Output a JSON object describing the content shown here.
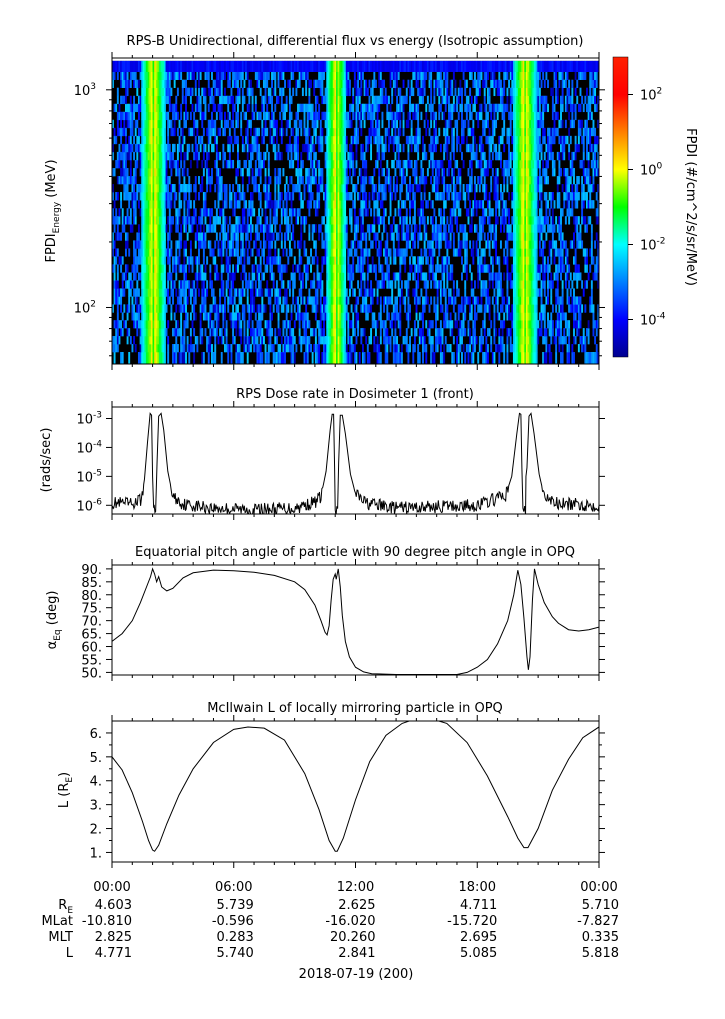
{
  "figure": {
    "date_label": "2018-07-19 (200)",
    "time_ticks": [
      "00:00",
      "06:00",
      "12:00",
      "18:00",
      "00:00"
    ],
    "ephemeris": [
      {
        "label": "R",
        "sub": "E",
        "values": [
          "4.603",
          "5.739",
          "2.625",
          "4.711",
          "5.710"
        ]
      },
      {
        "label": "MLat",
        "sub": "",
        "values": [
          "-10.810",
          "-0.596",
          "-16.020",
          "-15.720",
          "-7.827"
        ]
      },
      {
        "label": "MLT",
        "sub": "",
        "values": [
          "2.825",
          "0.283",
          "20.260",
          "2.695",
          "0.335"
        ]
      },
      {
        "label": "L",
        "sub": "",
        "values": [
          "4.771",
          "5.740",
          "2.841",
          "5.085",
          "5.818"
        ]
      }
    ]
  },
  "chart_data": [
    {
      "type": "heatmap",
      "title": "RPS-B  Unidirectional, differential flux vs energy (Isotropic assumption)",
      "ylabel": {
        "main": "FPDI",
        "sub": "Energy",
        "unit": " (MeV)"
      },
      "yscale": "log",
      "ylim": [
        55,
        1400
      ],
      "y_ticks": [
        {
          "value": 100,
          "base": "10",
          "exp": "2"
        },
        {
          "value": 1000,
          "base": "10",
          "exp": "3"
        }
      ],
      "energy_channels_mev": [
        60,
        65,
        71,
        77,
        84,
        91,
        99,
        108,
        117,
        128,
        139,
        151,
        165,
        179,
        195,
        212,
        231,
        252,
        274,
        298,
        325,
        354,
        385,
        419,
        456,
        497,
        541,
        589,
        641,
        698,
        760,
        827,
        900,
        980,
        1067,
        1161,
        1264
      ],
      "x_hours": [
        0,
        24
      ],
      "flux_peaks_hours": [
        2.05,
        11.05,
        20.35
      ],
      "flux_peak_halfwidth_hours": [
        0.62,
        0.5,
        0.6
      ],
      "colorbar": {
        "label": "FPDI (#/cm^2/s/sr/MeV)",
        "scale": "log",
        "range_exp": [
          -5,
          3
        ],
        "ticks": [
          {
            "base": "10",
            "exp": "2",
            "value_exp": 2
          },
          {
            "base": "10",
            "exp": "0",
            "value_exp": 0
          },
          {
            "base": "10",
            "exp": "-2",
            "value_exp": -2
          },
          {
            "base": "10",
            "exp": "-4",
            "value_exp": -4
          }
        ]
      }
    },
    {
      "type": "line",
      "title": "RPS  Dose rate in Dosimeter 1 (front)",
      "ylabel": "(rads/sec)",
      "yscale": "log",
      "ylim": [
        5e-07,
        0.0025
      ],
      "y_ticks": [
        {
          "value": 1e-06,
          "base": "10",
          "exp": "-6"
        },
        {
          "value": 1e-05,
          "base": "10",
          "exp": "-5"
        },
        {
          "value": 0.0001,
          "base": "10",
          "exp": "-4"
        },
        {
          "value": 0.001,
          "base": "10",
          "exp": "-3"
        }
      ],
      "x_hours": [
        0,
        24
      ],
      "series": [
        {
          "points": [
            [
              0.0,
              1.2e-06
            ],
            [
              1.0,
              1.1e-06
            ],
            [
              1.45,
              1.6e-06
            ],
            [
              1.6,
              8e-06
            ],
            [
              1.75,
              0.00015
            ],
            [
              1.88,
              0.0015
            ],
            [
              1.95,
              0.0013
            ],
            [
              2.0,
              1e-05
            ],
            [
              2.05,
              6e-07
            ],
            [
              2.15,
              6e-07
            ],
            [
              2.22,
              3e-05
            ],
            [
              2.3,
              0.0012
            ],
            [
              2.42,
              0.0015
            ],
            [
              2.55,
              0.0004
            ],
            [
              2.75,
              1.5e-05
            ],
            [
              3.0,
              2e-06
            ],
            [
              3.5,
              1.1e-06
            ],
            [
              5.0,
              8e-07
            ],
            [
              7.0,
              7e-07
            ],
            [
              9.0,
              8e-07
            ],
            [
              10.0,
              1.3e-06
            ],
            [
              10.3,
              2e-06
            ],
            [
              10.55,
              1.5e-05
            ],
            [
              10.75,
              0.0004
            ],
            [
              10.85,
              0.0014
            ],
            [
              10.92,
              0.0014
            ],
            [
              10.97,
              2e-05
            ],
            [
              11.0,
              6e-07
            ],
            [
              11.12,
              6e-07
            ],
            [
              11.17,
              3e-05
            ],
            [
              11.25,
              0.0013
            ],
            [
              11.35,
              0.0013
            ],
            [
              11.5,
              0.0003
            ],
            [
              11.75,
              1.2e-05
            ],
            [
              12.0,
              2.5e-06
            ],
            [
              12.5,
              1.2e-06
            ],
            [
              14.0,
              8e-07
            ],
            [
              16.0,
              9e-07
            ],
            [
              18.0,
              1e-06
            ],
            [
              19.4,
              2.2e-06
            ],
            [
              19.7,
              1e-05
            ],
            [
              19.95,
              0.0003
            ],
            [
              20.08,
              0.0015
            ],
            [
              20.15,
              0.0014
            ],
            [
              20.2,
              2e-05
            ],
            [
              20.25,
              6e-07
            ],
            [
              20.38,
              6e-07
            ],
            [
              20.4,
              1e-05
            ],
            [
              20.45,
              2e-05
            ],
            [
              20.55,
              0.0012
            ],
            [
              20.65,
              0.0015
            ],
            [
              20.8,
              0.0003
            ],
            [
              21.05,
              1.2e-05
            ],
            [
              21.3,
              2e-06
            ],
            [
              22.0,
              1.1e-06
            ],
            [
              24.0,
              1e-06
            ]
          ]
        }
      ]
    },
    {
      "type": "line",
      "title": "Equatorial pitch angle of particle with 90 degree pitch angle in OPQ",
      "ylabel": {
        "main": "α",
        "sub": "Eq",
        "unit": " (deg)"
      },
      "ylim": [
        49,
        91.5
      ],
      "y_ticks": [
        50,
        55,
        60,
        65,
        70,
        75,
        80,
        85,
        90
      ],
      "x_hours": [
        0,
        24
      ],
      "series": [
        {
          "points": [
            [
              0.0,
              62
            ],
            [
              0.5,
              65
            ],
            [
              1.0,
              70
            ],
            [
              1.4,
              77
            ],
            [
              1.7,
              83
            ],
            [
              1.9,
              87
            ],
            [
              2.0,
              90
            ],
            [
              2.1,
              88
            ],
            [
              2.2,
              85
            ],
            [
              2.3,
              87
            ],
            [
              2.45,
              83
            ],
            [
              2.7,
              81.5
            ],
            [
              3.0,
              82.5
            ],
            [
              3.5,
              86.5
            ],
            [
              4.0,
              88.5
            ],
            [
              5.0,
              89.5
            ],
            [
              6.0,
              89.3
            ],
            [
              7.0,
              88.7
            ],
            [
              8.0,
              87.5
            ],
            [
              9.0,
              85
            ],
            [
              9.5,
              82
            ],
            [
              10.0,
              76
            ],
            [
              10.3,
              70
            ],
            [
              10.5,
              65.5
            ],
            [
              10.6,
              64.5
            ],
            [
              10.7,
              68
            ],
            [
              10.8,
              78
            ],
            [
              10.9,
              86
            ],
            [
              11.0,
              88
            ],
            [
              11.05,
              86
            ],
            [
              11.15,
              90
            ],
            [
              11.25,
              83
            ],
            [
              11.35,
              72
            ],
            [
              11.5,
              62
            ],
            [
              11.7,
              56
            ],
            [
              12.0,
              52
            ],
            [
              12.4,
              50.2
            ],
            [
              12.8,
              49.5
            ],
            [
              14.0,
              49.2
            ],
            [
              17.0,
              49.2
            ],
            [
              17.5,
              50
            ],
            [
              18.0,
              52
            ],
            [
              18.5,
              55
            ],
            [
              19.0,
              61
            ],
            [
              19.5,
              70
            ],
            [
              19.8,
              80
            ],
            [
              20.0,
              89.5
            ],
            [
              20.15,
              84
            ],
            [
              20.3,
              71
            ],
            [
              20.45,
              56
            ],
            [
              20.52,
              51
            ],
            [
              20.6,
              56
            ],
            [
              20.72,
              78
            ],
            [
              20.82,
              90
            ],
            [
              21.0,
              84
            ],
            [
              21.3,
              77
            ],
            [
              21.7,
              71.5
            ],
            [
              22.0,
              69
            ],
            [
              22.5,
              66.5
            ],
            [
              23.0,
              66
            ],
            [
              23.5,
              66.5
            ],
            [
              24.0,
              67.5
            ]
          ]
        }
      ]
    },
    {
      "type": "line",
      "title": "McIlwain L of locally mirroring particle in OPQ",
      "ylabel": {
        "main": "L (R",
        "sub": "E",
        "unit": ")"
      },
      "ylim": [
        0.6,
        6.5
      ],
      "y_ticks": [
        1,
        2,
        3,
        4,
        5,
        6
      ],
      "y_tick_labels": [
        "1.",
        "2.",
        "3.",
        "4.",
        "5.",
        "6."
      ],
      "x_hours": [
        0,
        24
      ],
      "series": [
        {
          "points": [
            [
              0.0,
              5.0
            ],
            [
              0.5,
              4.45
            ],
            [
              1.0,
              3.5
            ],
            [
              1.5,
              2.3
            ],
            [
              1.8,
              1.5
            ],
            [
              2.0,
              1.1
            ],
            [
              2.1,
              1.05
            ],
            [
              2.3,
              1.3
            ],
            [
              2.7,
              2.2
            ],
            [
              3.3,
              3.4
            ],
            [
              4.0,
              4.5
            ],
            [
              5.0,
              5.6
            ],
            [
              6.0,
              6.15
            ],
            [
              6.7,
              6.25
            ],
            [
              7.5,
              6.2
            ],
            [
              8.5,
              5.7
            ],
            [
              9.5,
              4.3
            ],
            [
              10.2,
              2.8
            ],
            [
              10.7,
              1.5
            ],
            [
              11.0,
              1.05
            ],
            [
              11.1,
              1.05
            ],
            [
              11.4,
              1.6
            ],
            [
              12.0,
              3.2
            ],
            [
              12.7,
              4.8
            ],
            [
              13.5,
              5.9
            ],
            [
              14.3,
              6.4
            ],
            [
              15.0,
              6.6
            ],
            [
              15.7,
              6.6
            ],
            [
              16.5,
              6.4
            ],
            [
              17.5,
              5.6
            ],
            [
              18.5,
              4.2
            ],
            [
              19.5,
              2.5
            ],
            [
              20.0,
              1.6
            ],
            [
              20.3,
              1.2
            ],
            [
              20.5,
              1.2
            ],
            [
              21.0,
              2.0
            ],
            [
              21.7,
              3.6
            ],
            [
              22.5,
              4.9
            ],
            [
              23.2,
              5.8
            ],
            [
              24.0,
              6.25
            ]
          ]
        }
      ]
    }
  ]
}
